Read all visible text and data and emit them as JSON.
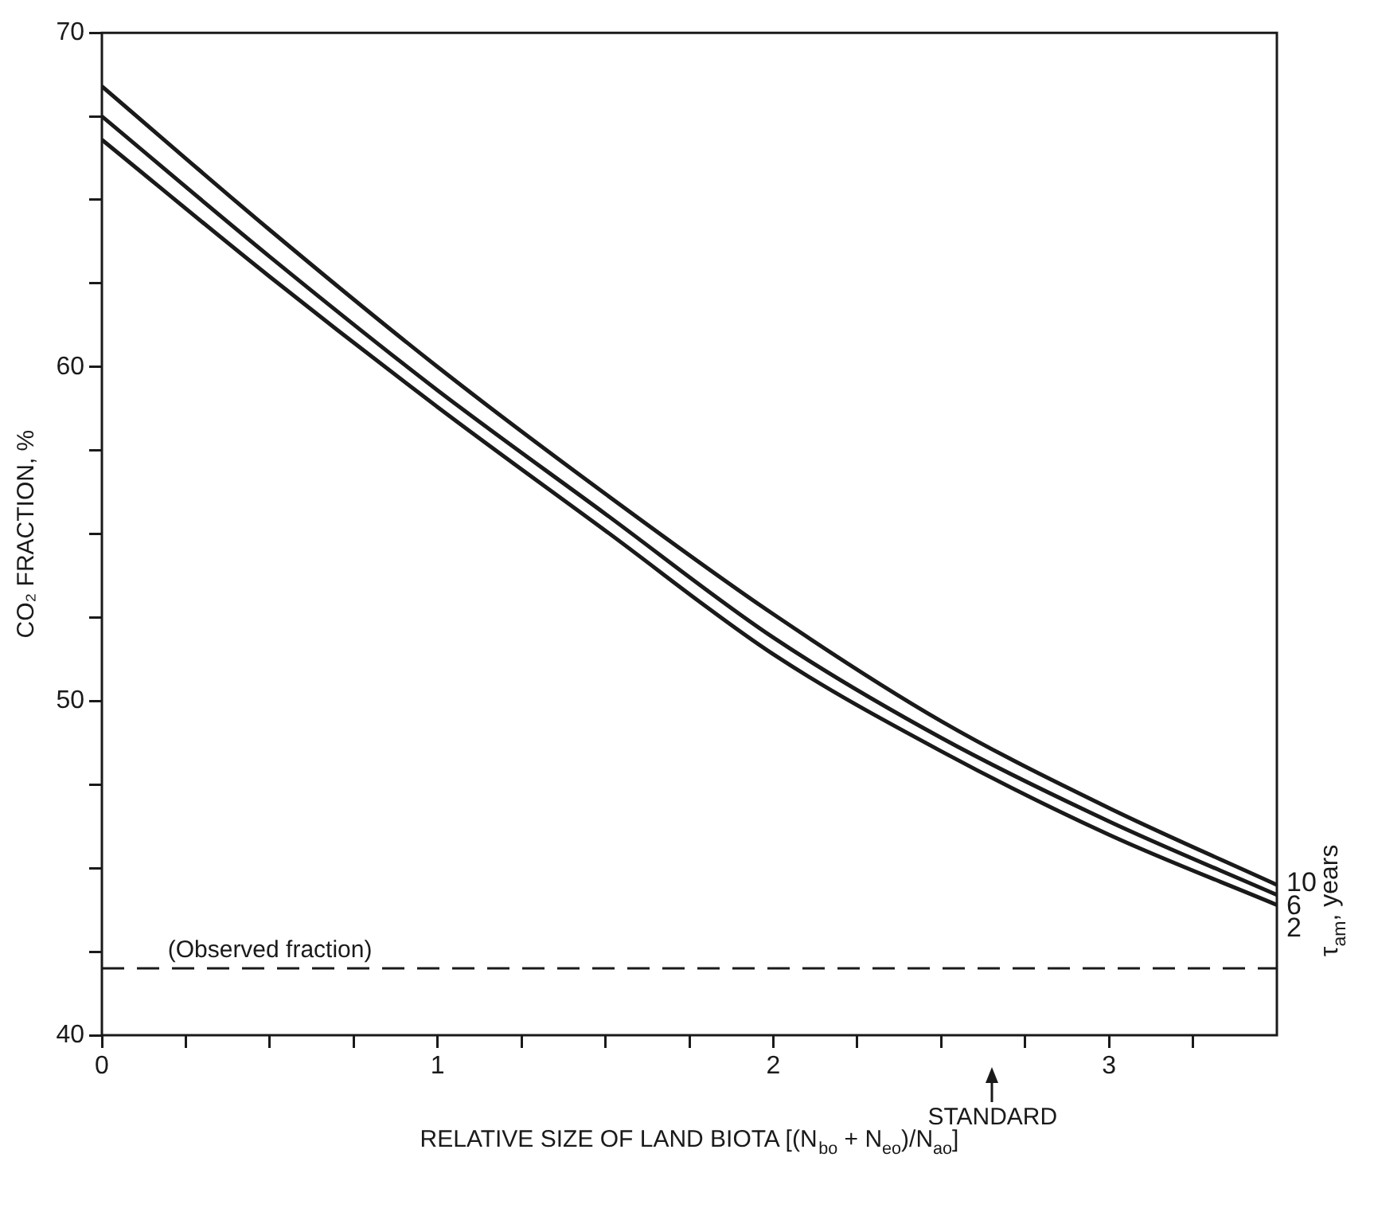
{
  "chart_data": {
    "type": "line",
    "xlabel": "RELATIVE SIZE OF LAND BIOTA [(N$_{bo}$ + N$_{eo}$)/N$_{ao}$]",
    "ylabel": "CO₂ FRACTION, %",
    "legend_title": "τ$_{am}$, years",
    "x": [
      0,
      0.5,
      1,
      1.5,
      2,
      2.5,
      3,
      3.5
    ],
    "series": [
      {
        "name": "10",
        "color": "#1a1a1a",
        "values": [
          68.4,
          64.1,
          60.0,
          56.2,
          52.6,
          49.4,
          46.8,
          44.5
        ]
      },
      {
        "name": "6",
        "color": "#1a1a1a",
        "values": [
          67.5,
          63.3,
          59.3,
          55.6,
          51.9,
          48.9,
          46.4,
          44.2
        ]
      },
      {
        "name": "2",
        "color": "#1a1a1a",
        "values": [
          66.8,
          62.7,
          58.8,
          55.1,
          51.4,
          48.5,
          46.0,
          43.9
        ]
      }
    ],
    "xlim": [
      0,
      3.5
    ],
    "xticks": [
      0,
      {
        "value": 0.25,
        "label": null
      },
      {
        "value": 0.5,
        "label": null
      },
      {
        "value": 0.75,
        "label": null
      },
      1,
      {
        "value": 1.25,
        "label": null
      },
      {
        "value": 1.5,
        "label": null
      },
      {
        "value": 1.75,
        "label": null
      },
      2,
      {
        "value": 2.25,
        "label": null
      },
      {
        "value": 2.5,
        "label": null
      },
      {
        "value": 2.75,
        "label": null
      },
      3,
      {
        "value": 3.25,
        "label": null
      }
    ],
    "ylim": [
      40,
      70
    ],
    "yticks": [
      40,
      {
        "value": 42.5,
        "label": null
      },
      {
        "value": 45,
        "label": null
      },
      {
        "value": 47.5,
        "label": null
      },
      50,
      {
        "value": 52.5,
        "label": null
      },
      {
        "value": 55,
        "label": null
      },
      {
        "value": 57.5,
        "label": null
      },
      60,
      {
        "value": 62.5,
        "label": null
      },
      {
        "value": 65,
        "label": null
      },
      {
        "value": 67.5,
        "label": null
      },
      70
    ],
    "ref_lines": [
      {
        "axis": "y",
        "value": 42,
        "label": "(Observed fraction)",
        "color": "#1a1a1a",
        "line_style": "dashed"
      }
    ],
    "annotations": [
      "STANDARD"
    ],
    "marker": "none",
    "line_style": "solid",
    "grid": false
  }
}
